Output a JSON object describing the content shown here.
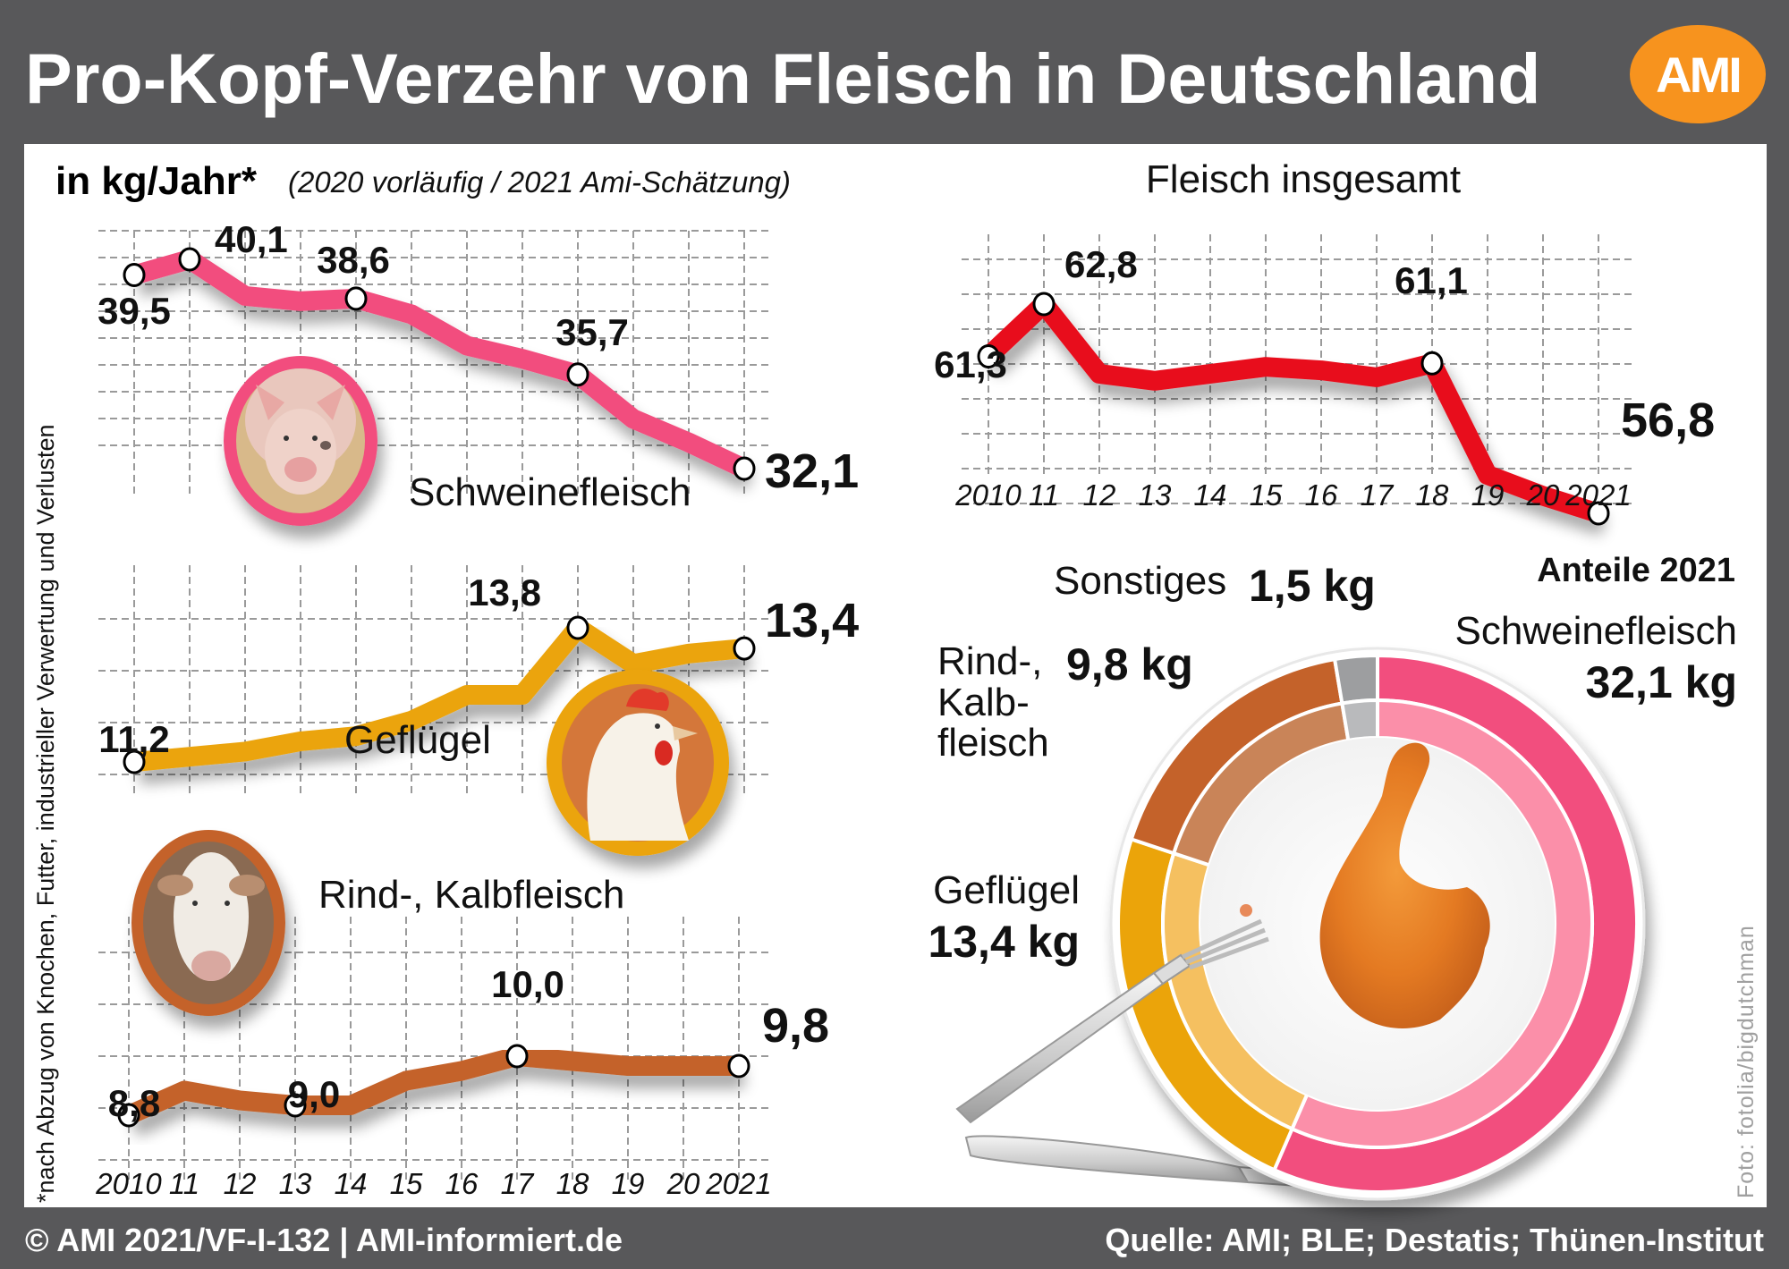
{
  "header": {
    "title": "Pro-Kopf-Verzehr von Fleisch in Deutschland",
    "logo_text": "AMI"
  },
  "subtitle": {
    "unit": "in kg/Jahr*",
    "note": "(2020 vorläufig / 2021 Ami-Schätzung)"
  },
  "footnote": "*nach Abzug von Knochen, Futter, industrieller Verwertung und Verlusten",
  "photo_credit": "Foto:  fotolia/bigdutchman",
  "footer": {
    "copyright": "© AMI 2021/VF-I-132 | AMI-informiert.de",
    "source": "Quelle: AMI; BLE; Destatis; Thünen-Institut"
  },
  "colors": {
    "background": "#58585a",
    "logo": "#f7931e",
    "pork": "#f24e7e",
    "poultry": "#eba40a",
    "beef": "#c4622a",
    "total": "#e8101e",
    "other": "#9d9ea0"
  },
  "year_labels": [
    "2010",
    "11",
    "12",
    "13",
    "14",
    "15",
    "16",
    "17",
    "18",
    "19",
    "20",
    "2021"
  ],
  "chart_data": [
    {
      "type": "line",
      "id": "pork",
      "title": "Schweinefleisch",
      "unit": "kg/Jahr",
      "x": [
        2010,
        2011,
        2012,
        2013,
        2014,
        2015,
        2016,
        2017,
        2018,
        2019,
        2020,
        2021
      ],
      "values": [
        39.5,
        40.1,
        38.7,
        38.5,
        38.6,
        38.0,
        36.8,
        36.3,
        35.7,
        34.0,
        33.1,
        32.1
      ],
      "labels": [
        {
          "year": 2010,
          "text": "39,5"
        },
        {
          "year": 2011,
          "text": "40,1"
        },
        {
          "year": 2014,
          "text": "38,6"
        },
        {
          "year": 2018,
          "text": "35,7"
        },
        {
          "year": 2021,
          "text": "32,1"
        }
      ],
      "ylim": [
        31.2,
        41.4
      ]
    },
    {
      "type": "line",
      "id": "poultry",
      "title": "Geflügel",
      "unit": "kg/Jahr",
      "x": [
        2010,
        2011,
        2012,
        2013,
        2014,
        2015,
        2016,
        2017,
        2018,
        2019,
        2020,
        2021
      ],
      "values": [
        11.2,
        11.3,
        11.4,
        11.6,
        11.7,
        12.0,
        12.5,
        12.5,
        13.8,
        13.1,
        13.3,
        13.4
      ],
      "labels": [
        {
          "year": 2010,
          "text": "11,2"
        },
        {
          "year": 2018,
          "text": "13,8"
        },
        {
          "year": 2021,
          "text": "13,4"
        }
      ],
      "ylim": [
        10.0,
        14.5
      ]
    },
    {
      "type": "line",
      "id": "beef",
      "title": "Rind-, Kalbfleisch",
      "unit": "kg/Jahr",
      "x": [
        2010,
        2011,
        2012,
        2013,
        2014,
        2015,
        2016,
        2017,
        2018,
        2019,
        2020,
        2021
      ],
      "values": [
        8.8,
        9.3,
        9.1,
        9.0,
        9.0,
        9.5,
        9.7,
        10.0,
        9.9,
        9.8,
        9.8,
        9.8
      ],
      "labels": [
        {
          "year": 2010,
          "text": "8,8"
        },
        {
          "year": 2013,
          "text": "9,0"
        },
        {
          "year": 2017,
          "text": "10,0"
        },
        {
          "year": 2021,
          "text": "9,8"
        }
      ],
      "xlabels": [
        "2010",
        "11",
        "12",
        "13",
        "14",
        "15",
        "16",
        "17",
        "18",
        "19",
        "20",
        "2021"
      ],
      "ylim": [
        8.0,
        11.0
      ]
    },
    {
      "type": "line",
      "id": "total",
      "title": "Fleisch insgesamt",
      "unit": "kg/Jahr",
      "x": [
        2010,
        2011,
        2012,
        2013,
        2014,
        2015,
        2016,
        2017,
        2018,
        2019,
        2020,
        2021
      ],
      "values": [
        61.3,
        62.8,
        60.8,
        60.6,
        60.8,
        61.0,
        60.9,
        60.7,
        61.1,
        57.9,
        57.3,
        56.8
      ],
      "labels": [
        {
          "year": 2010,
          "text": "61,3"
        },
        {
          "year": 2011,
          "text": "62,8"
        },
        {
          "year": 2018,
          "text": "61,1"
        },
        {
          "year": 2021,
          "text": "56,8"
        }
      ],
      "xlabels": [
        "2010",
        "11",
        "12",
        "13",
        "14",
        "15",
        "16",
        "17",
        "18",
        "19",
        "20",
        "2021"
      ],
      "ylim": [
        55.8,
        64.6
      ]
    },
    {
      "type": "pie",
      "id": "shares",
      "title": "Anteile 2021",
      "unit": "kg",
      "slices": [
        {
          "name": "Schweinefleisch",
          "value": 32.1,
          "label": "32,1 kg"
        },
        {
          "name": "Geflügel",
          "value": 13.4,
          "label": "13,4 kg"
        },
        {
          "name": "Rind-, Kalbfleisch",
          "value": 9.8,
          "label": "9,8 kg"
        },
        {
          "name": "Sonstiges",
          "value": 1.5,
          "label": "1,5 kg"
        }
      ],
      "slice_text": {
        "pork_name": "Schweinefleisch",
        "poultry_name": "Geflügel",
        "beef_name_1": "Rind-,",
        "beef_name_2": "Kalb-",
        "beef_name_3": "fleisch",
        "other_name": "Sonstiges"
      }
    }
  ]
}
